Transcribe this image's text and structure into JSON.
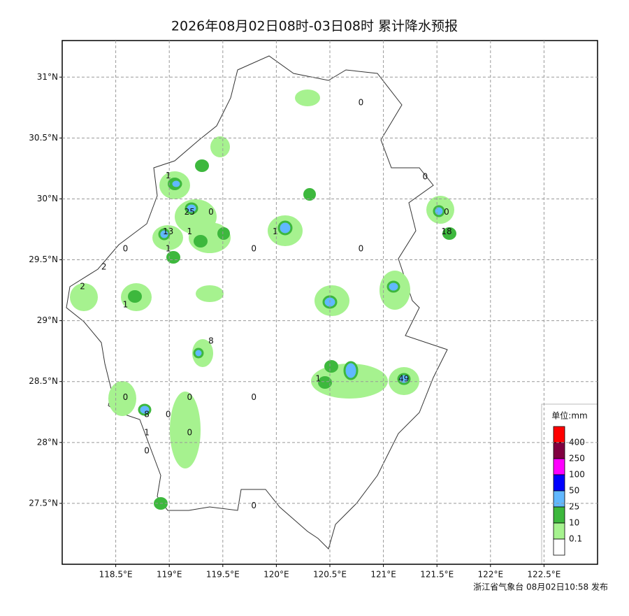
{
  "title": "2026年08月02日08时-03日08时 累计降水预报",
  "footer": "浙江省气象台 08月02日10:58 发布",
  "map": {
    "lonlim": [
      118.0,
      123.0
    ],
    "latlim": [
      27.0,
      31.3
    ],
    "lonticks": [
      {
        "value": 118.5,
        "label": "118.5°E"
      },
      {
        "value": 119,
        "label": "119°E"
      },
      {
        "value": 119.5,
        "label": "119.5°E"
      },
      {
        "value": 120,
        "label": "120°E"
      },
      {
        "value": 120.5,
        "label": "120.5°E"
      },
      {
        "value": 121,
        "label": "121°E"
      },
      {
        "value": 121.5,
        "label": "121.5°E"
      },
      {
        "value": 122,
        "label": "122°E"
      },
      {
        "value": 122.5,
        "label": "122.5°E"
      }
    ],
    "latticks": [
      {
        "value": 27.5,
        "label": "27.5°N"
      },
      {
        "value": 28,
        "label": "28°N"
      },
      {
        "value": 28.5,
        "label": "28.5°N"
      },
      {
        "value": 29,
        "label": "29°N"
      },
      {
        "value": 29.5,
        "label": "29.5°N"
      },
      {
        "value": 30,
        "label": "30°N"
      },
      {
        "value": 30.5,
        "label": "30.5°N"
      },
      {
        "value": 31,
        "label": "31°N"
      }
    ],
    "grid": true,
    "stations": [
      {
        "value": 0,
        "lon": 120.79,
        "lat": 30.79
      },
      {
        "value": 0,
        "lon": 121.39,
        "lat": 30.18
      },
      {
        "value": 1,
        "lon": 118.99,
        "lat": 30.19
      },
      {
        "value": 25,
        "lon": 119.19,
        "lat": 29.89
      },
      {
        "value": 0,
        "lon": 119.39,
        "lat": 29.89
      },
      {
        "value": 0,
        "lon": 121.59,
        "lat": 29.89
      },
      {
        "value": 13,
        "lon": 118.99,
        "lat": 29.73
      },
      {
        "value": 1,
        "lon": 119.19,
        "lat": 29.73
      },
      {
        "value": 18,
        "lon": 121.59,
        "lat": 29.73
      },
      {
        "value": 1,
        "lon": 119.99,
        "lat": 29.73
      },
      {
        "value": 0,
        "lon": 118.59,
        "lat": 29.59
      },
      {
        "value": 1,
        "lon": 118.99,
        "lat": 29.59
      },
      {
        "value": 0,
        "lon": 119.79,
        "lat": 29.59
      },
      {
        "value": 0,
        "lon": 120.79,
        "lat": 29.59
      },
      {
        "value": 2,
        "lon": 118.39,
        "lat": 29.44
      },
      {
        "value": 2,
        "lon": 118.19,
        "lat": 29.28
      },
      {
        "value": 1,
        "lon": 118.59,
        "lat": 29.13
      },
      {
        "value": 8,
        "lon": 119.39,
        "lat": 28.83
      },
      {
        "value": 1,
        "lon": 120.39,
        "lat": 28.52
      },
      {
        "value": 49,
        "lon": 121.19,
        "lat": 28.52
      },
      {
        "value": 0,
        "lon": 118.59,
        "lat": 28.37
      },
      {
        "value": 0,
        "lon": 119.19,
        "lat": 28.37
      },
      {
        "value": 0,
        "lon": 119.79,
        "lat": 28.37
      },
      {
        "value": 8,
        "lon": 118.79,
        "lat": 28.23
      },
      {
        "value": 0,
        "lon": 118.99,
        "lat": 28.23
      },
      {
        "value": 1,
        "lon": 118.79,
        "lat": 28.08
      },
      {
        "value": 0,
        "lon": 119.19,
        "lat": 28.08
      },
      {
        "value": 0,
        "lon": 118.79,
        "lat": 27.93
      },
      {
        "value": 0,
        "lon": 119.79,
        "lat": 27.48
      }
    ]
  },
  "legend": {
    "title": "单位:mm",
    "colors": [
      "#ff0000",
      "#800040",
      "#ff00ff",
      "#0000ff",
      "#61b8ff",
      "#3db83d",
      "#a6f28f",
      "#ffffff"
    ],
    "levels": [
      400,
      250,
      100,
      50,
      25,
      10,
      0.1
    ]
  }
}
